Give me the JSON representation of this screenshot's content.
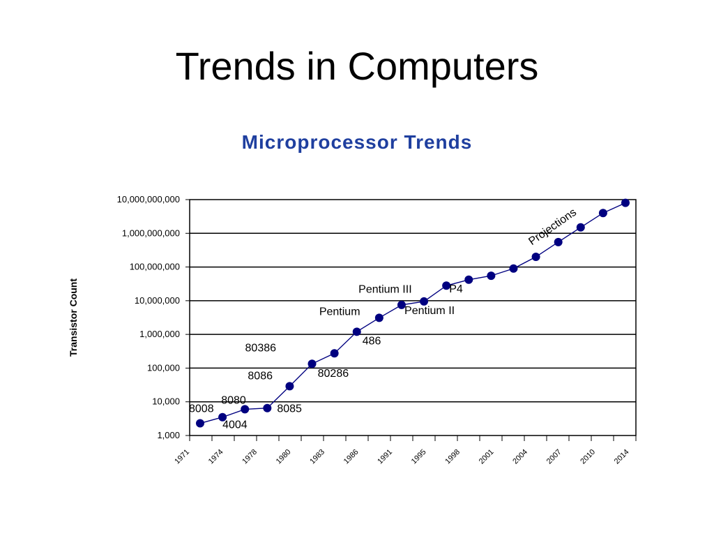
{
  "slide": {
    "title": "Trends in Computers"
  },
  "chart_data": {
    "type": "line",
    "title": "Microprocessor Trends",
    "xlabel": "",
    "ylabel": "Transistor Count",
    "scale": "log",
    "grid": true,
    "y_ticks": [
      "1,000",
      "10,000",
      "100,000",
      "1,000,000",
      "10,000,000",
      "100,000,000",
      "1,000,000,000",
      "10,000,000,000"
    ],
    "y_tick_values": [
      1000,
      10000,
      100000,
      1000000,
      10000000,
      100000000,
      1000000000,
      10000000000
    ],
    "x_tick_labels": [
      "1971",
      "1974",
      "1978",
      "1980",
      "1983",
      "1986",
      "1991",
      "1995",
      "1998",
      "2001",
      "2004",
      "2007",
      "2010",
      "2014"
    ],
    "series": [
      {
        "values": [
          2300,
          3500,
          6000,
          6500,
          29000,
          134000,
          275000,
          1200000,
          3100000,
          7500000,
          9500000,
          28000000,
          42000000,
          55000000,
          90000000,
          200000000,
          550000000,
          1500000000,
          4000000000,
          8000000000
        ]
      }
    ],
    "annotations": [
      {
        "text": "8008",
        "point": 0
      },
      {
        "text": "4004",
        "point": 1
      },
      {
        "text": "8080",
        "point": 2
      },
      {
        "text": "8085",
        "point": 3
      },
      {
        "text": "8086",
        "point": 4
      },
      {
        "text": "80286",
        "point": 6
      },
      {
        "text": "80386",
        "point": 5
      },
      {
        "text": "486",
        "point": 7
      },
      {
        "text": "Pentium",
        "point": 8
      },
      {
        "text": "Pentium II",
        "point": 10
      },
      {
        "text": "Pentium III",
        "point": 11
      },
      {
        "text": "P4",
        "point": 12
      },
      {
        "text": "Projections",
        "point": 17
      }
    ]
  },
  "colors": {
    "series": "#000080",
    "chart_title": "#1f3f9f"
  }
}
